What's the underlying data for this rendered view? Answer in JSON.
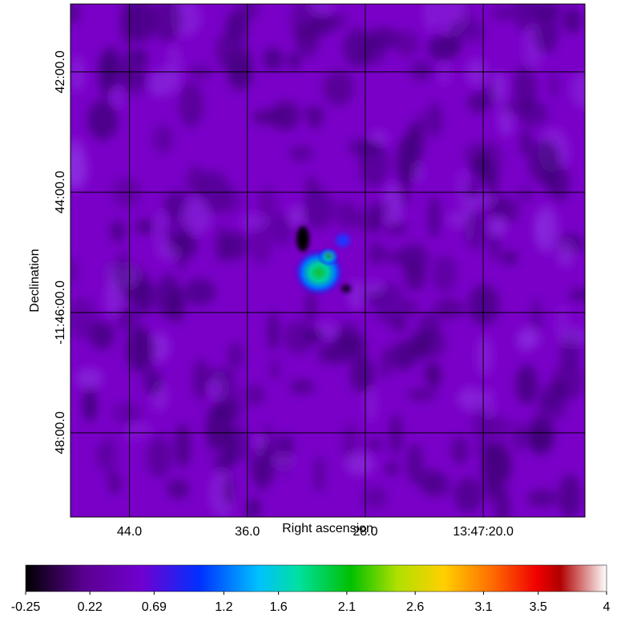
{
  "chart_data": {
    "type": "image",
    "xlabel": "Right ascension",
    "ylabel": "Declination",
    "xlim": [
      48.0,
      13.1
    ],
    "xticks": [
      {
        "value": 44,
        "label": "44.0"
      },
      {
        "value": 36,
        "label": "36.0"
      },
      {
        "value": 28,
        "label": "28.0"
      },
      {
        "value": 20,
        "label": "13:47:20.0"
      }
    ],
    "ylim": [
      49.4,
      40.87
    ],
    "yticks": [
      {
        "value": 42,
        "label": "42:00.0"
      },
      {
        "value": 44,
        "label": "44:00.0"
      },
      {
        "value": 46,
        "label": "-11:46:00.0"
      },
      {
        "value": 48,
        "label": "48:00.0"
      }
    ],
    "grid": true,
    "colorbar": {
      "lim": [
        -0.25,
        4
      ],
      "ticks": [
        -0.25,
        0.22,
        0.69,
        1.2,
        1.6,
        2.1,
        2.6,
        3.1,
        3.5,
        4
      ]
    }
  }
}
